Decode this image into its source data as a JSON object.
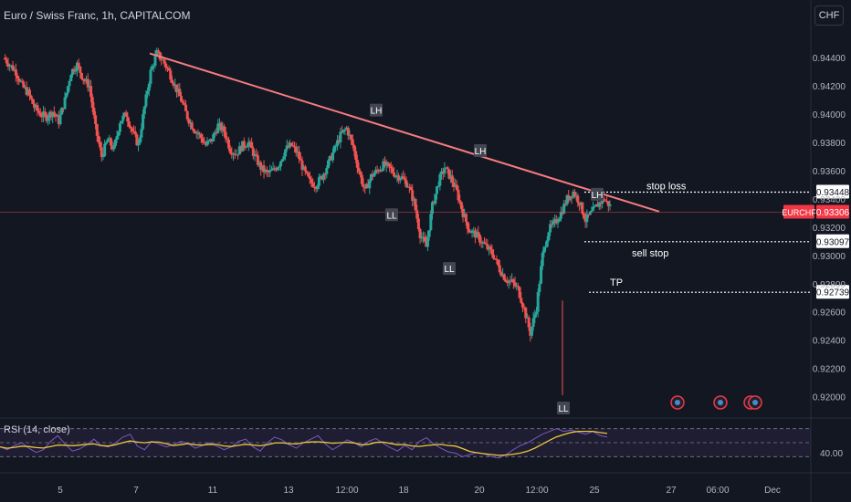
{
  "header": {
    "title": "Euro / Swiss Franc, 1h, CAPITALCOM"
  },
  "currency_button": "CHF",
  "rsi": {
    "label": "RSI (14, close)",
    "tick_label": "40.00"
  },
  "price_axis": {
    "ticks": [
      "0.94400",
      "0.94200",
      "0.94000",
      "0.93800",
      "0.93600",
      "0.93400",
      "0.93200",
      "0.93000",
      "0.92800",
      "0.92600",
      "0.92400",
      "0.92200",
      "0.92000"
    ],
    "badges": [
      {
        "text": "0.93448",
        "price": 0.93448,
        "style": "white"
      },
      {
        "text": "0.93306",
        "price": 0.93306,
        "style": "red"
      },
      {
        "text": "0.93097",
        "price": 0.93097,
        "style": "white"
      },
      {
        "text": "0.92739",
        "price": 0.92739,
        "style": "white"
      }
    ],
    "symbol_badge": "EURCHF"
  },
  "time_axis": {
    "labels": [
      "5",
      "7",
      "11",
      "13",
      "12:00",
      "18",
      "20",
      "12:00",
      "25",
      "27",
      "06:00",
      "Dec"
    ]
  },
  "annotations": {
    "pivots": [
      "LH",
      "LH",
      "LH",
      "LL",
      "LL",
      "LL"
    ],
    "levels": [
      "stop loss",
      "sell stop",
      "TP"
    ]
  },
  "colors": {
    "up": "#26a69a",
    "down": "#ef5350",
    "trendline": "#f77c80",
    "rsi": "#7e57c2",
    "rsi_ma": "#f0c93a",
    "bg": "#131722"
  },
  "chart_data": {
    "type": "candlestick",
    "symbol": "EURCHF",
    "interval": "1h",
    "y_range": [
      0.919,
      0.9455
    ],
    "last_price": 0.93306,
    "levels": {
      "stop_loss": 0.93448,
      "sell_stop": 0.93097,
      "take_profit": 0.92739
    },
    "pivots": [
      {
        "label": "LH",
        "price": 0.939
      },
      {
        "label": "LH",
        "price": 0.936
      },
      {
        "label": "LH",
        "price": 0.934
      },
      {
        "label": "LL",
        "price": 0.9343
      },
      {
        "label": "LL",
        "price": 0.9305
      },
      {
        "label": "LL",
        "price": 0.9201
      }
    ],
    "trendline": {
      "from_price": 0.9443,
      "to_price": 0.9331
    },
    "price_path": [
      0.944,
      0.9435,
      0.943,
      0.942,
      0.9415,
      0.9405,
      0.94,
      0.9398,
      0.9402,
      0.9395,
      0.941,
      0.943,
      0.9435,
      0.9425,
      0.942,
      0.939,
      0.937,
      0.9382,
      0.9375,
      0.9395,
      0.94,
      0.9388,
      0.9378,
      0.9405,
      0.943,
      0.9443,
      0.9438,
      0.943,
      0.942,
      0.941,
      0.9398,
      0.939,
      0.9385,
      0.9378,
      0.9382,
      0.9392,
      0.9388,
      0.9375,
      0.9372,
      0.9378,
      0.938,
      0.937,
      0.9362,
      0.9358,
      0.936,
      0.9365,
      0.9375,
      0.9378,
      0.9372,
      0.936,
      0.9352,
      0.935,
      0.9356,
      0.9365,
      0.9375,
      0.9385,
      0.939,
      0.9378,
      0.936,
      0.9345,
      0.9356,
      0.936,
      0.9364,
      0.9362,
      0.9357,
      0.9355,
      0.935,
      0.9338,
      0.9315,
      0.9306,
      0.9335,
      0.9352,
      0.9362,
      0.9355,
      0.9345,
      0.933,
      0.9318,
      0.9315,
      0.931,
      0.9305,
      0.93,
      0.929,
      0.9283,
      0.9281,
      0.9276,
      0.9262,
      0.9245,
      0.9263,
      0.93,
      0.9318,
      0.9323,
      0.933,
      0.934,
      0.9345,
      0.9338,
      0.9325,
      0.933,
      0.9336,
      0.934,
      0.9335
    ],
    "rsi_path": [
      44,
      40,
      46,
      50,
      42,
      36,
      40,
      52,
      60,
      48,
      38,
      41,
      47,
      55,
      46,
      44,
      50,
      58,
      62,
      45,
      40,
      52,
      48,
      44,
      47,
      52,
      49,
      42,
      46,
      50,
      45,
      40,
      44,
      52,
      55,
      44,
      38,
      50,
      58,
      54,
      47,
      42,
      50,
      55,
      60,
      48,
      40,
      46,
      54,
      50,
      44,
      52,
      56,
      49,
      43,
      38,
      46,
      40,
      52,
      57,
      48,
      42,
      37,
      35,
      30,
      33,
      36,
      34,
      30,
      28,
      33,
      40,
      46,
      50,
      56,
      62,
      66,
      70,
      66,
      68,
      65,
      62,
      66,
      60,
      58
    ]
  }
}
